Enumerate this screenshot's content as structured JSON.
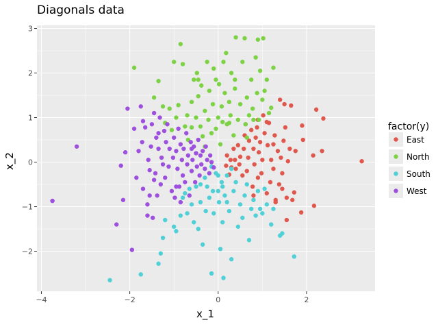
{
  "chart_data": {
    "type": "scatter",
    "title": "Diagonals data",
    "xlabel": "x_1",
    "ylabel": "x_2",
    "xlim": [
      -4.1,
      3.55
    ],
    "ylim": [
      -2.9,
      3.07
    ],
    "xticks": [
      -4,
      -2,
      0,
      2
    ],
    "yticks": [
      -2,
      -1,
      0,
      1,
      2,
      3
    ],
    "tick_labels_x": [
      "−4",
      "−2",
      "0",
      "2"
    ],
    "tick_labels_y": [
      "−2",
      "−1",
      "0",
      "1",
      "2",
      "3"
    ],
    "grid": true,
    "legend": {
      "title": "factor(y)",
      "position": "right"
    },
    "series": [
      {
        "name": "East",
        "color": "#e0584d",
        "points": [
          [
            3.25,
            0.02
          ],
          [
            2.38,
            0.98
          ],
          [
            2.35,
            0.25
          ],
          [
            2.22,
            1.18
          ],
          [
            2.15,
            0.15
          ],
          [
            2.17,
            -0.98
          ],
          [
            1.9,
            0.82
          ],
          [
            1.92,
            0.5
          ],
          [
            1.88,
            -1.13
          ],
          [
            1.75,
            0.25
          ],
          [
            1.72,
            -0.68
          ],
          [
            1.65,
            1.27
          ],
          [
            1.62,
            0.3
          ],
          [
            1.58,
            0.02
          ],
          [
            1.55,
            -0.8
          ],
          [
            1.52,
            0.78
          ],
          [
            1.5,
            1.3
          ],
          [
            1.48,
            0.48
          ],
          [
            1.45,
            -0.25
          ],
          [
            1.42,
            0.1
          ],
          [
            1.4,
            1.4
          ],
          [
            1.38,
            -0.5
          ],
          [
            1.35,
            0.25
          ],
          [
            1.3,
            -0.9
          ],
          [
            1.28,
            0.6
          ],
          [
            1.25,
            -0.15
          ],
          [
            1.2,
            0.05
          ],
          [
            1.18,
            -0.45
          ],
          [
            1.15,
            0.88
          ],
          [
            1.12,
            0.38
          ],
          [
            1.1,
            -0.7
          ],
          [
            1.05,
            0.65
          ],
          [
            1.0,
            0.05
          ],
          [
            0.98,
            -0.25
          ],
          [
            0.95,
            0.45
          ],
          [
            0.92,
            0.22
          ],
          [
            0.9,
            -0.35
          ],
          [
            0.88,
            0.78
          ],
          [
            0.85,
            0.55
          ],
          [
            0.82,
            -0.05
          ],
          [
            0.8,
            0.3
          ],
          [
            0.78,
            -0.55
          ],
          [
            0.75,
            0.72
          ],
          [
            0.7,
            0.48
          ],
          [
            0.68,
            0.1
          ],
          [
            0.65,
            -0.2
          ],
          [
            0.6,
            0.6
          ],
          [
            0.58,
            0.3
          ],
          [
            0.55,
            -0.3
          ],
          [
            0.5,
            0.12
          ],
          [
            0.48,
            -0.05
          ],
          [
            0.45,
            0.38
          ],
          [
            0.4,
            -0.15
          ],
          [
            0.38,
            0.05
          ],
          [
            0.35,
            0.3
          ],
          [
            0.3,
            -0.12
          ],
          [
            0.28,
            0.05
          ],
          [
            0.25,
            -0.28
          ],
          [
            0.2,
            0.15
          ],
          [
            0.18,
            -0.08
          ],
          [
            1.3,
            -0.85
          ],
          [
            1.55,
            -1.3
          ],
          [
            1.68,
            -0.85
          ],
          [
            0.8,
            -0.75
          ],
          [
            1.1,
            0.9
          ],
          [
            1.25,
            0.4
          ],
          [
            0.62,
            0.85
          ],
          [
            0.9,
            0.95
          ],
          [
            1.02,
            1.05
          ],
          [
            1.45,
            -0.6
          ]
        ]
      },
      {
        "name": "North",
        "color": "#7cd244",
        "points": [
          [
            -1.9,
            2.12
          ],
          [
            -1.45,
            1.45
          ],
          [
            -1.35,
            1.82
          ],
          [
            -1.25,
            1.25
          ],
          [
            -1.2,
            0.88
          ],
          [
            -1.1,
            1.2
          ],
          [
            -1.05,
            0.72
          ],
          [
            -1.0,
            2.25
          ],
          [
            -0.95,
            1.0
          ],
          [
            -0.9,
            1.28
          ],
          [
            -0.85,
            2.65
          ],
          [
            -0.8,
            2.2
          ],
          [
            -0.75,
            0.8
          ],
          [
            -0.7,
            1.05
          ],
          [
            -0.68,
            0.5
          ],
          [
            -0.6,
            1.35
          ],
          [
            -0.55,
            1.85
          ],
          [
            -0.5,
            1.0
          ],
          [
            -0.48,
            2.0
          ],
          [
            -0.45,
            1.48
          ],
          [
            -0.4,
            0.8
          ],
          [
            -0.38,
            1.72
          ],
          [
            -0.35,
            0.58
          ],
          [
            -0.3,
            1.15
          ],
          [
            -0.25,
            2.25
          ],
          [
            -0.22,
            0.95
          ],
          [
            -0.2,
            1.6
          ],
          [
            -0.15,
            0.65
          ],
          [
            -0.12,
            1.3
          ],
          [
            -0.1,
            2.1
          ],
          [
            -0.05,
            0.75
          ],
          [
            0.0,
            1.0
          ],
          [
            0.02,
            1.75
          ],
          [
            0.05,
            0.4
          ],
          [
            0.08,
            1.25
          ],
          [
            0.1,
            0.9
          ],
          [
            0.12,
            2.25
          ],
          [
            0.15,
            1.55
          ],
          [
            0.18,
            2.45
          ],
          [
            0.2,
            0.85
          ],
          [
            0.25,
            1.35
          ],
          [
            0.28,
            1.05
          ],
          [
            0.3,
            2.0
          ],
          [
            0.35,
            0.6
          ],
          [
            0.38,
            1.65
          ],
          [
            0.4,
            2.8
          ],
          [
            0.45,
            0.95
          ],
          [
            0.5,
            1.3
          ],
          [
            0.55,
            2.25
          ],
          [
            0.6,
            2.78
          ],
          [
            0.62,
            0.85
          ],
          [
            0.65,
            1.45
          ],
          [
            0.7,
            1.05
          ],
          [
            0.75,
            1.85
          ],
          [
            0.78,
            1.2
          ],
          [
            0.8,
            0.95
          ],
          [
            0.85,
            2.35
          ],
          [
            0.88,
            1.55
          ],
          [
            0.9,
            2.75
          ],
          [
            0.92,
            0.95
          ],
          [
            0.95,
            2.05
          ],
          [
            1.0,
            1.4
          ],
          [
            1.02,
            2.78
          ],
          [
            1.05,
            1.6
          ],
          [
            1.1,
            1.85
          ],
          [
            1.15,
            1.1
          ],
          [
            1.2,
            1.22
          ],
          [
            1.25,
            2.12
          ],
          [
            -0.6,
            0.78
          ],
          [
            -0.3,
            0.35
          ],
          [
            -0.45,
            1.85
          ],
          [
            0.38,
            1.85
          ],
          [
            0.65,
            0.55
          ],
          [
            0.25,
            0.88
          ],
          [
            -0.05,
            1.85
          ]
        ]
      },
      {
        "name": "South",
        "color": "#4fcfd6",
        "points": [
          [
            -2.45,
            -2.65
          ],
          [
            -1.75,
            -2.52
          ],
          [
            -1.35,
            -2.28
          ],
          [
            -1.3,
            -2.05
          ],
          [
            -1.25,
            -1.7
          ],
          [
            -1.2,
            -1.3
          ],
          [
            -1.0,
            -1.45
          ],
          [
            -0.95,
            -1.55
          ],
          [
            -0.85,
            -1.2
          ],
          [
            -0.8,
            -0.8
          ],
          [
            -0.75,
            -0.7
          ],
          [
            -0.7,
            -1.15
          ],
          [
            -0.65,
            -0.6
          ],
          [
            -0.6,
            -0.95
          ],
          [
            -0.55,
            -1.35
          ],
          [
            -0.5,
            -0.55
          ],
          [
            -0.45,
            -1.5
          ],
          [
            -0.4,
            -0.9
          ],
          [
            -0.35,
            -1.85
          ],
          [
            -0.3,
            -0.35
          ],
          [
            -0.28,
            -1.1
          ],
          [
            -0.25,
            -0.55
          ],
          [
            -0.2,
            -0.8
          ],
          [
            -0.15,
            -2.5
          ],
          [
            -0.12,
            -0.65
          ],
          [
            -0.1,
            -1.15
          ],
          [
            -0.05,
            -0.25
          ],
          [
            0.0,
            -0.65
          ],
          [
            0.02,
            -0.9
          ],
          [
            0.05,
            -1.95
          ],
          [
            0.08,
            -0.45
          ],
          [
            0.1,
            -1.35
          ],
          [
            0.12,
            -2.6
          ],
          [
            0.15,
            -0.75
          ],
          [
            0.2,
            -0.3
          ],
          [
            0.25,
            -1.1
          ],
          [
            0.3,
            -2.18
          ],
          [
            0.35,
            -0.65
          ],
          [
            0.4,
            -0.45
          ],
          [
            0.45,
            -1.45
          ],
          [
            0.5,
            -0.95
          ],
          [
            0.55,
            -1.25
          ],
          [
            0.6,
            -0.75
          ],
          [
            0.65,
            -0.5
          ],
          [
            0.7,
            -1.75
          ],
          [
            0.75,
            -1.05
          ],
          [
            0.8,
            -0.85
          ],
          [
            0.85,
            -1.2
          ],
          [
            0.9,
            -0.65
          ],
          [
            0.95,
            -1.05
          ],
          [
            1.0,
            -1.15
          ],
          [
            1.05,
            -0.6
          ],
          [
            1.1,
            -0.95
          ],
          [
            1.2,
            -1.4
          ],
          [
            1.25,
            -1.05
          ],
          [
            1.4,
            -1.65
          ],
          [
            1.45,
            -1.6
          ],
          [
            1.72,
            -2.12
          ],
          [
            -0.4,
            -0.5
          ],
          [
            0.0,
            -0.3
          ],
          [
            0.3,
            -0.15
          ],
          [
            -0.15,
            -0.1
          ],
          [
            0.1,
            -0.55
          ],
          [
            0.2,
            -0.9
          ]
        ]
      },
      {
        "name": "West",
        "color": "#9d4fdd",
        "points": [
          [
            -3.75,
            -0.87
          ],
          [
            -3.2,
            0.35
          ],
          [
            -2.3,
            -1.4
          ],
          [
            -2.2,
            -0.08
          ],
          [
            -2.15,
            -0.85
          ],
          [
            -2.1,
            0.22
          ],
          [
            -2.05,
            1.2
          ],
          [
            -1.95,
            -1.97
          ],
          [
            -1.9,
            0.75
          ],
          [
            -1.85,
            -0.35
          ],
          [
            -1.8,
            0.25
          ],
          [
            -1.75,
            1.25
          ],
          [
            -1.72,
            0.45
          ],
          [
            -1.7,
            -0.6
          ],
          [
            -1.65,
            0.78
          ],
          [
            -1.6,
            -0.95
          ],
          [
            -1.58,
            0.05
          ],
          [
            -1.55,
            -0.18
          ],
          [
            -1.52,
            0.35
          ],
          [
            -1.5,
            0.85
          ],
          [
            -1.48,
            -1.25
          ],
          [
            -1.45,
            1.1
          ],
          [
            -1.42,
            -0.25
          ],
          [
            -1.4,
            0.55
          ],
          [
            -1.38,
            -0.75
          ],
          [
            -1.35,
            0.3
          ],
          [
            -1.32,
            1.0
          ],
          [
            -1.3,
            -0.5
          ],
          [
            -1.28,
            0.1
          ],
          [
            -1.25,
            -0.05
          ],
          [
            -1.22,
            0.7
          ],
          [
            -1.2,
            -0.35
          ],
          [
            -1.18,
            0.45
          ],
          [
            -1.15,
            0.85
          ],
          [
            -1.12,
            -0.1
          ],
          [
            -1.1,
            0.3
          ],
          [
            -1.05,
            -0.65
          ],
          [
            -1.02,
            0.1
          ],
          [
            -1.0,
            0.55
          ],
          [
            -0.98,
            -0.8
          ],
          [
            -0.95,
            0.25
          ],
          [
            -0.92,
            -0.15
          ],
          [
            -0.9,
            0.75
          ],
          [
            -0.88,
            -0.55
          ],
          [
            -0.85,
            0.4
          ],
          [
            -0.82,
            0.05
          ],
          [
            -0.8,
            -0.3
          ],
          [
            -0.78,
            0.3
          ],
          [
            -0.75,
            -0.45
          ],
          [
            -0.72,
            0.65
          ],
          [
            -0.7,
            -0.05
          ],
          [
            -0.68,
            0.15
          ],
          [
            -0.65,
            -0.75
          ],
          [
            -0.62,
            0.45
          ],
          [
            -0.6,
            -0.2
          ],
          [
            -0.58,
            0.05
          ],
          [
            -0.55,
            0.35
          ],
          [
            -0.52,
            -0.45
          ],
          [
            -0.5,
            0.2
          ],
          [
            -0.48,
            -0.1
          ],
          [
            -0.45,
            0.5
          ],
          [
            -0.42,
            -0.3
          ],
          [
            -0.4,
            0.15
          ],
          [
            -0.38,
            -0.05
          ],
          [
            -0.35,
            0.25
          ],
          [
            -0.3,
            -0.15
          ],
          [
            -0.28,
            0.35
          ],
          [
            -0.25,
            0.05
          ],
          [
            -0.2,
            -0.25
          ],
          [
            -0.18,
            0.15
          ],
          [
            -0.15,
            0.0
          ],
          [
            -0.1,
            -0.12
          ],
          [
            -1.6,
            -1.2
          ],
          [
            -1.35,
            0.65
          ],
          [
            -1.55,
            -0.75
          ],
          [
            -0.95,
            -0.55
          ],
          [
            -1.45,
            -0.4
          ],
          [
            -1.7,
            0.92
          ],
          [
            -0.85,
            -0.9
          ],
          [
            -0.6,
            0.3
          ]
        ]
      }
    ]
  }
}
